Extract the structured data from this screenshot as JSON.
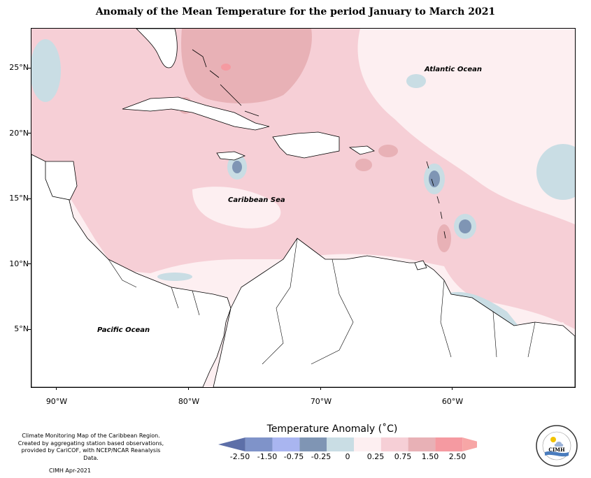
{
  "title": "Anomaly of the Mean Temperature for the period January to March 2021",
  "map": {
    "latitude_labels": [
      "25°N",
      "20°N",
      "15°N",
      "10°N",
      "5°N"
    ],
    "longitude_labels": [
      "90°W",
      "80°W",
      "70°W",
      "60°W"
    ],
    "ocean_labels": {
      "atlantic": "Atlantic Ocean",
      "caribbean": "Caribbean Sea",
      "pacific": "Pacific Ocean"
    }
  },
  "legend": {
    "title": "Temperature Anomaly (˚C)",
    "ticks": [
      "-2.50",
      "-1.50",
      "-0.75",
      "-0.25",
      "0",
      "0.25",
      "0.75",
      "1.50",
      "2.50"
    ],
    "colors": [
      "#5d6fa8",
      "#7f93c9",
      "#a9b5f0",
      "#7f95b4",
      "#c9dde4",
      "#fdeff1",
      "#f6cfd6",
      "#e8b1b6",
      "#f59aa1",
      "#f7a6a6"
    ]
  },
  "credits": {
    "text_lines": [
      "Climate Monitoring Map of the Caribbean Region.",
      "Created by aggregating station based observations,",
      "provided by CariCOF, with NCEP/NCAR Reanalysis Data."
    ],
    "date": "CIMH Apr-2021"
  },
  "logo": {
    "text": "CIMH",
    "icon": "sun-cloud-logo-icon"
  }
}
